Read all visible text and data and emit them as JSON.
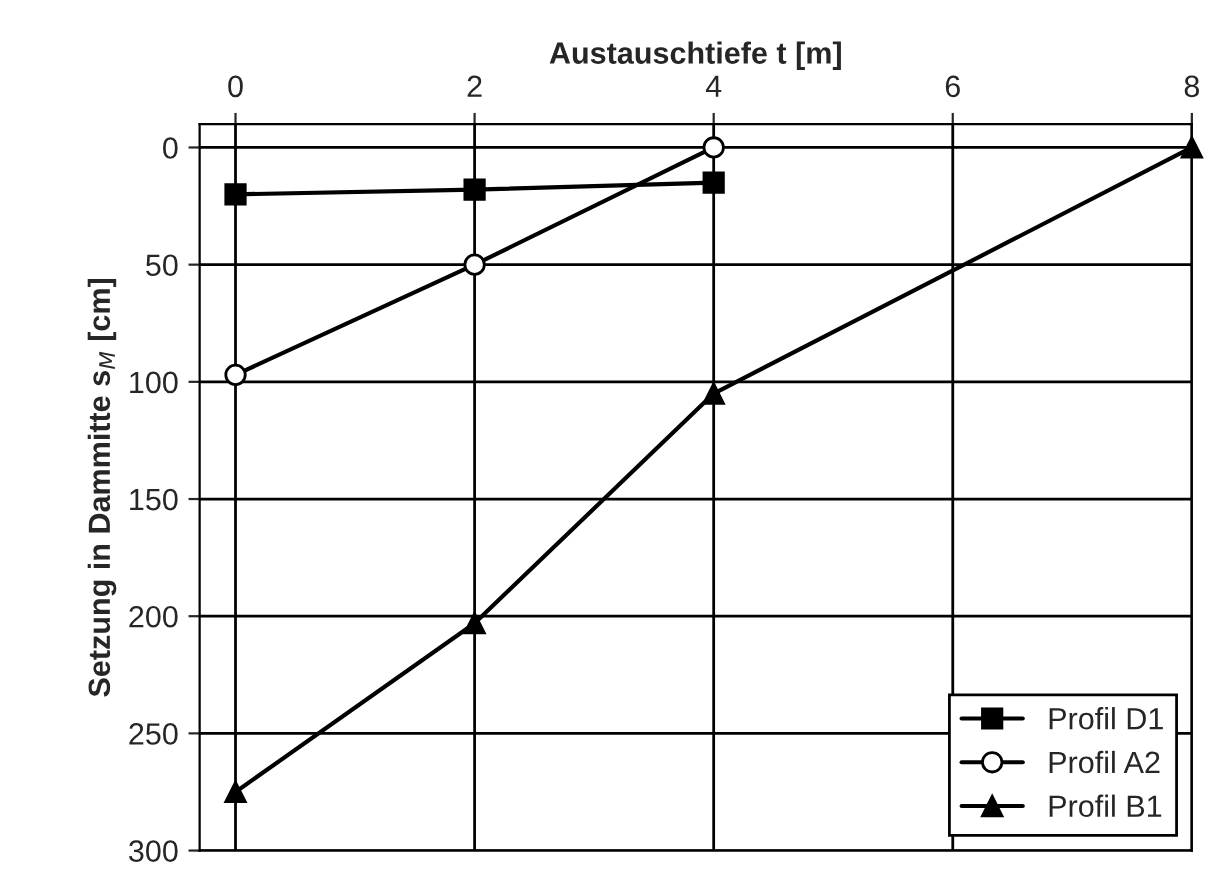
{
  "chart_data": {
    "type": "line",
    "xlabel": "Austauschtiefe t [m]",
    "ylabel": "Setzung in Dammitte s$_{M}$ [cm]",
    "xlim": [
      -0.3,
      8
    ],
    "xticks": [
      0,
      2,
      4,
      6,
      8
    ],
    "ylim": [
      300,
      -10
    ],
    "yticks": [
      0,
      50,
      100,
      150,
      200,
      250,
      300
    ],
    "grid": true,
    "legend": "bottom right",
    "line_style": "solid",
    "series": [
      {
        "name": "Profil D1",
        "color": "#000000",
        "marker": "square",
        "x": [
          0,
          2,
          4
        ],
        "values": [
          20,
          18,
          15
        ]
      },
      {
        "name": "Profil A2",
        "color": "#000000",
        "marker": "circle",
        "x": [
          0,
          2,
          4
        ],
        "values": [
          97,
          50,
          0
        ]
      },
      {
        "name": "Profil B1",
        "color": "#000000",
        "marker": "triangle",
        "x": [
          0,
          2,
          4,
          8
        ],
        "values": [
          275,
          203,
          105,
          0
        ]
      }
    ]
  }
}
